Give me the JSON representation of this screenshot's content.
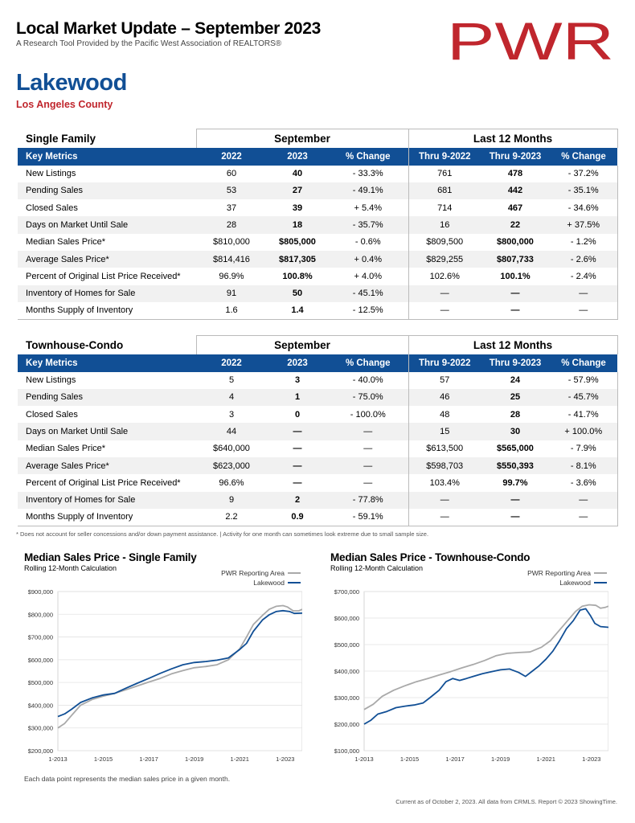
{
  "header": {
    "title": "Local Market Update – September 2023",
    "subtitle": "A Research Tool Provided by the Pacific West Association of REALTORS®",
    "logo_text": "PWR"
  },
  "area": {
    "name": "Lakewood",
    "county": "Los Angeles County"
  },
  "colors": {
    "brand_blue": "#114f95",
    "brand_red": "#c0262d",
    "pwr_line": "#a9a9a9",
    "local_line": "#114f95"
  },
  "tables": [
    {
      "section": "Single Family",
      "group_month": "September",
      "group_12": "Last 12 Months",
      "columns": [
        "Key Metrics",
        "2022",
        "2023",
        "% Change",
        "Thru 9-2022",
        "Thru 9-2023",
        "% Change"
      ],
      "rows": [
        [
          "New Listings",
          "60",
          "40",
          "- 33.3%",
          "761",
          "478",
          "- 37.2%"
        ],
        [
          "Pending Sales",
          "53",
          "27",
          "- 49.1%",
          "681",
          "442",
          "- 35.1%"
        ],
        [
          "Closed Sales",
          "37",
          "39",
          "+ 5.4%",
          "714",
          "467",
          "- 34.6%"
        ],
        [
          "Days on Market Until Sale",
          "28",
          "18",
          "- 35.7%",
          "16",
          "22",
          "+ 37.5%"
        ],
        [
          "Median Sales Price*",
          "$810,000",
          "$805,000",
          "- 0.6%",
          "$809,500",
          "$800,000",
          "- 1.2%"
        ],
        [
          "Average Sales Price*",
          "$814,416",
          "$817,305",
          "+ 0.4%",
          "$829,255",
          "$807,733",
          "- 2.6%"
        ],
        [
          "Percent of Original List Price Received*",
          "96.9%",
          "100.8%",
          "+ 4.0%",
          "102.6%",
          "100.1%",
          "- 2.4%"
        ],
        [
          "Inventory of Homes for Sale",
          "91",
          "50",
          "- 45.1%",
          "—",
          "—",
          "—"
        ],
        [
          "Months Supply of Inventory",
          "1.6",
          "1.4",
          "- 12.5%",
          "—",
          "—",
          "—"
        ]
      ]
    },
    {
      "section": "Townhouse-Condo",
      "group_month": "September",
      "group_12": "Last 12 Months",
      "columns": [
        "Key Metrics",
        "2022",
        "2023",
        "% Change",
        "Thru 9-2022",
        "Thru 9-2023",
        "% Change"
      ],
      "rows": [
        [
          "New Listings",
          "5",
          "3",
          "- 40.0%",
          "57",
          "24",
          "- 57.9%"
        ],
        [
          "Pending Sales",
          "4",
          "1",
          "- 75.0%",
          "46",
          "25",
          "- 45.7%"
        ],
        [
          "Closed Sales",
          "3",
          "0",
          "- 100.0%",
          "48",
          "28",
          "- 41.7%"
        ],
        [
          "Days on Market Until Sale",
          "44",
          "—",
          "—",
          "15",
          "30",
          "+ 100.0%"
        ],
        [
          "Median Sales Price*",
          "$640,000",
          "—",
          "—",
          "$613,500",
          "$565,000",
          "- 7.9%"
        ],
        [
          "Average Sales Price*",
          "$623,000",
          "—",
          "—",
          "$598,703",
          "$550,393",
          "- 8.1%"
        ],
        [
          "Percent of Original List Price Received*",
          "96.6%",
          "—",
          "—",
          "103.4%",
          "99.7%",
          "- 3.6%"
        ],
        [
          "Inventory of Homes for Sale",
          "9",
          "2",
          "- 77.8%",
          "—",
          "—",
          "—"
        ],
        [
          "Months Supply of Inventory",
          "2.2",
          "0.9",
          "- 59.1%",
          "—",
          "—",
          "—"
        ]
      ]
    }
  ],
  "footnote": "* Does not account for seller concessions and/or down payment assistance. | Activity for one month can sometimes look extreme due to small sample size.",
  "chart_data": [
    {
      "type": "line",
      "title": "Median Sales Price - Single Family",
      "subtitle": "Rolling 12-Month Calculation",
      "x_ticks": [
        "1-2013",
        "1-2015",
        "1-2017",
        "1-2019",
        "1-2021",
        "1-2023"
      ],
      "x_range": [
        2013,
        2023.75
      ],
      "y_ticks": [
        "$200,000",
        "$300,000",
        "$400,000",
        "$500,000",
        "$600,000",
        "$700,000",
        "$800,000",
        "$900,000"
      ],
      "ylim": [
        200000,
        900000
      ],
      "grid": true,
      "legend": "top-right",
      "series": [
        {
          "name": "PWR Reporting Area",
          "color": "#a9a9a9",
          "points": [
            [
              2013,
              300000
            ],
            [
              2013.3,
              320000
            ],
            [
              2013.6,
              355000
            ],
            [
              2014,
              400000
            ],
            [
              2014.5,
              425000
            ],
            [
              2015,
              440000
            ],
            [
              2015.5,
              452000
            ],
            [
              2016,
              468000
            ],
            [
              2016.5,
              485000
            ],
            [
              2017,
              502000
            ],
            [
              2017.5,
              518000
            ],
            [
              2018,
              538000
            ],
            [
              2018.5,
              552000
            ],
            [
              2019,
              565000
            ],
            [
              2019.5,
              570000
            ],
            [
              2020,
              578000
            ],
            [
              2020.5,
              600000
            ],
            [
              2021,
              648000
            ],
            [
              2021.3,
              700000
            ],
            [
              2021.6,
              755000
            ],
            [
              2022,
              795000
            ],
            [
              2022.3,
              822000
            ],
            [
              2022.6,
              835000
            ],
            [
              2022.9,
              838000
            ],
            [
              2023.1,
              832000
            ],
            [
              2023.35,
              815000
            ],
            [
              2023.6,
              815000
            ],
            [
              2023.75,
              822000
            ]
          ]
        },
        {
          "name": "Lakewood",
          "color": "#114f95",
          "points": [
            [
              2013,
              350000
            ],
            [
              2013.3,
              362000
            ],
            [
              2013.6,
              382000
            ],
            [
              2014,
              412000
            ],
            [
              2014.5,
              432000
            ],
            [
              2015,
              445000
            ],
            [
              2015.5,
              452000
            ],
            [
              2016,
              475000
            ],
            [
              2016.5,
              497000
            ],
            [
              2017,
              518000
            ],
            [
              2017.5,
              540000
            ],
            [
              2018,
              560000
            ],
            [
              2018.5,
              578000
            ],
            [
              2019,
              588000
            ],
            [
              2019.5,
              592000
            ],
            [
              2020,
              598000
            ],
            [
              2020.5,
              608000
            ],
            [
              2021,
              645000
            ],
            [
              2021.3,
              672000
            ],
            [
              2021.6,
              725000
            ],
            [
              2022,
              775000
            ],
            [
              2022.3,
              798000
            ],
            [
              2022.6,
              812000
            ],
            [
              2022.9,
              816000
            ],
            [
              2023.2,
              812000
            ],
            [
              2023.4,
              804000
            ],
            [
              2023.75,
              805000
            ]
          ]
        }
      ]
    },
    {
      "type": "line",
      "title": "Median Sales Price - Townhouse-Condo",
      "subtitle": "Rolling 12-Month Calculation",
      "x_ticks": [
        "1-2013",
        "1-2015",
        "1-2017",
        "1-2019",
        "1-2021",
        "1-2023"
      ],
      "x_range": [
        2013,
        2023.75
      ],
      "y_ticks": [
        "$100,000",
        "$200,000",
        "$300,000",
        "$400,000",
        "$500,000",
        "$600,000",
        "$700,000"
      ],
      "ylim": [
        100000,
        700000
      ],
      "grid": true,
      "legend": "top-right",
      "series": [
        {
          "name": "PWR Reporting Area",
          "color": "#a9a9a9",
          "points": [
            [
              2013,
              255000
            ],
            [
              2013.4,
              275000
            ],
            [
              2013.8,
              305000
            ],
            [
              2014.3,
              328000
            ],
            [
              2014.8,
              345000
            ],
            [
              2015.3,
              360000
            ],
            [
              2015.8,
              372000
            ],
            [
              2016.3,
              385000
            ],
            [
              2016.8,
              398000
            ],
            [
              2017.3,
              412000
            ],
            [
              2017.8,
              425000
            ],
            [
              2018.3,
              440000
            ],
            [
              2018.8,
              458000
            ],
            [
              2019.3,
              467000
            ],
            [
              2019.8,
              470000
            ],
            [
              2020.3,
              472000
            ],
            [
              2020.8,
              490000
            ],
            [
              2021.2,
              515000
            ],
            [
              2021.6,
              555000
            ],
            [
              2022,
              595000
            ],
            [
              2022.3,
              625000
            ],
            [
              2022.6,
              645000
            ],
            [
              2022.9,
              650000
            ],
            [
              2023.2,
              648000
            ],
            [
              2023.4,
              637000
            ],
            [
              2023.6,
              640000
            ],
            [
              2023.75,
              645000
            ]
          ]
        },
        {
          "name": "Lakewood",
          "color": "#114f95",
          "points": [
            [
              2013,
              200000
            ],
            [
              2013.3,
              215000
            ],
            [
              2013.6,
              238000
            ],
            [
              2014,
              248000
            ],
            [
              2014.4,
              262000
            ],
            [
              2014.8,
              268000
            ],
            [
              2015.2,
              272000
            ],
            [
              2015.6,
              280000
            ],
            [
              2015.9,
              300000
            ],
            [
              2016.3,
              328000
            ],
            [
              2016.6,
              360000
            ],
            [
              2016.9,
              372000
            ],
            [
              2017.2,
              365000
            ],
            [
              2017.5,
              372000
            ],
            [
              2017.8,
              380000
            ],
            [
              2018.2,
              390000
            ],
            [
              2018.6,
              398000
            ],
            [
              2019,
              405000
            ],
            [
              2019.4,
              408000
            ],
            [
              2019.8,
              395000
            ],
            [
              2020.1,
              380000
            ],
            [
              2020.4,
              400000
            ],
            [
              2020.7,
              420000
            ],
            [
              2021,
              445000
            ],
            [
              2021.3,
              475000
            ],
            [
              2021.6,
              515000
            ],
            [
              2021.9,
              560000
            ],
            [
              2022.2,
              590000
            ],
            [
              2022.5,
              630000
            ],
            [
              2022.75,
              635000
            ],
            [
              2022.95,
              610000
            ],
            [
              2023.15,
              580000
            ],
            [
              2023.4,
              568000
            ],
            [
              2023.75,
              565000
            ]
          ]
        }
      ]
    }
  ],
  "chart_note": "Each data point represents the median sales price in a given month.",
  "report_footer": "Current as of October 2, 2023. All data from CRMLS. Report © 2023 ShowingTime."
}
